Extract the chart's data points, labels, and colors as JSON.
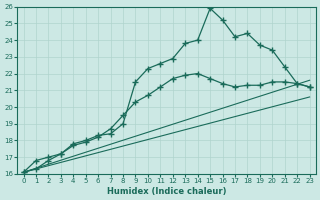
{
  "xlabel": "Humidex (Indice chaleur)",
  "xlim": [
    -0.5,
    23.5
  ],
  "ylim": [
    16,
    26
  ],
  "xticks": [
    0,
    1,
    2,
    3,
    4,
    5,
    6,
    7,
    8,
    9,
    10,
    11,
    12,
    13,
    14,
    15,
    16,
    17,
    18,
    19,
    20,
    21,
    22,
    23
  ],
  "yticks": [
    16,
    17,
    18,
    19,
    20,
    21,
    22,
    23,
    24,
    25,
    26
  ],
  "bg_color": "#cce8e4",
  "line_color": "#1a6b5a",
  "grid_color": "#b0d4ce",
  "main_line": {
    "x": [
      0,
      1,
      2,
      3,
      4,
      5,
      6,
      7,
      8,
      9,
      10,
      11,
      12,
      13,
      14,
      15,
      16,
      17,
      18,
      19,
      20,
      21,
      22,
      23
    ],
    "y": [
      16.1,
      16.8,
      17.0,
      17.2,
      17.8,
      18.0,
      18.3,
      18.4,
      19.0,
      21.5,
      22.3,
      22.6,
      22.9,
      23.8,
      24.0,
      25.9,
      25.2,
      24.2,
      24.4,
      23.7,
      23.4,
      22.4,
      21.4,
      21.2
    ]
  },
  "smooth_line": {
    "x": [
      0,
      1,
      2,
      3,
      4,
      5,
      6,
      7,
      8,
      9,
      10,
      11,
      12,
      13,
      14,
      15,
      16,
      17,
      18,
      19,
      20,
      21,
      22,
      23
    ],
    "y": [
      16.1,
      16.3,
      16.8,
      17.2,
      17.7,
      17.9,
      18.2,
      18.7,
      19.5,
      20.3,
      20.7,
      21.2,
      21.7,
      21.9,
      22.0,
      21.7,
      21.4,
      21.2,
      21.3,
      21.3,
      21.5,
      21.5,
      21.4,
      21.2
    ]
  },
  "straight_line1": {
    "x": [
      0,
      23
    ],
    "y": [
      16.1,
      21.6
    ]
  },
  "straight_line2": {
    "x": [
      0,
      23
    ],
    "y": [
      16.1,
      20.6
    ]
  }
}
